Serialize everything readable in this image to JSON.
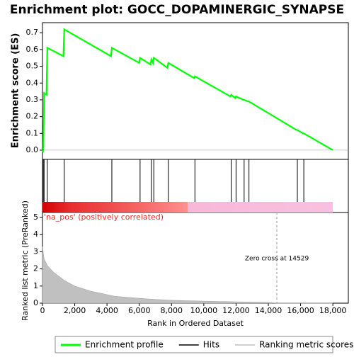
{
  "chart_data": [
    {
      "type": "line",
      "title": "Enrichment plot: GOCC_DOPAMINERGIC_SYNAPSE",
      "ylabel": "Enrichment score (ES)",
      "color": "#00ff00",
      "x": [
        0,
        50,
        100,
        250,
        300,
        1300,
        1350,
        4250,
        4300,
        6000,
        6050,
        6700,
        6750,
        6850,
        6900,
        7750,
        7800,
        9400,
        9450,
        11650,
        11700,
        11950,
        12000,
        12450,
        12500,
        12750,
        12800,
        15750,
        15800,
        16150,
        16200,
        18000
      ],
      "values": [
        0,
        -0.01,
        0.34,
        0.33,
        0.61,
        0.56,
        0.72,
        0.56,
        0.61,
        0.52,
        0.55,
        0.51,
        0.54,
        0.52,
        0.55,
        0.49,
        0.52,
        0.43,
        0.44,
        0.32,
        0.33,
        0.31,
        0.32,
        0.3,
        0.3,
        0.29,
        0.29,
        0.12,
        0.12,
        0.1,
        0.1,
        0
      ],
      "xlim": [
        0,
        18960
      ],
      "ylim": [
        -0.055,
        0.76
      ],
      "yticks": [
        {
          "value": 0,
          "label": "0.0"
        },
        0.1,
        0.2,
        0.3,
        0.4,
        0.5,
        0.6,
        0.7
      ]
    },
    {
      "type": "hits",
      "x": [
        50,
        100,
        300,
        1350,
        4300,
        6050,
        6750,
        6900,
        7800,
        9450,
        11700,
        12000,
        12500,
        12800,
        15800,
        16200
      ],
      "xlim": [
        0,
        18960
      ],
      "color": "#000000"
    },
    {
      "type": "area",
      "ylabel": "Ranked list metric (PreRanked)",
      "xlabel": "Rank in Ordered Dataset",
      "color": "#c0c0c0",
      "x": [
        0,
        100,
        300,
        700,
        1400,
        2000,
        3000,
        4500,
        6500,
        8000,
        10000,
        12000,
        14000,
        14529,
        18000
      ],
      "values": [
        3.3,
        2.6,
        2.2,
        1.8,
        1.3,
        1.0,
        0.7,
        0.4,
        0.25,
        0.17,
        0.12,
        0.08,
        0.05,
        0,
        0
      ],
      "xlim": [
        0,
        18960
      ],
      "ylim": [
        0,
        5.29
      ],
      "yticks": [
        0,
        1,
        2,
        3,
        4,
        5
      ],
      "xticks": [
        0,
        {
          "value": 2000,
          "label": "2,000"
        },
        {
          "value": 4000,
          "label": "4,000"
        },
        {
          "value": 6000,
          "label": "6,000"
        },
        {
          "value": 8000,
          "label": "8,000"
        },
        {
          "value": 10000,
          "label": "10,000"
        },
        {
          "value": 12000,
          "label": "12,000"
        },
        {
          "value": 14000,
          "label": "14,000"
        },
        {
          "value": 16000,
          "label": "16,000"
        },
        {
          "value": 18000,
          "label": "18,000"
        }
      ],
      "zero_cross": 14529,
      "annotation": "Zero cross at 14529",
      "positive_label": "'na_pos' (positively correlated)"
    }
  ],
  "legend": [
    {
      "name": "Enrichment profile",
      "color": "#00ff00"
    },
    {
      "name": "Hits",
      "color": "#000000"
    },
    {
      "name": "Ranking metric scores",
      "color": "#c0c0c0"
    }
  ]
}
